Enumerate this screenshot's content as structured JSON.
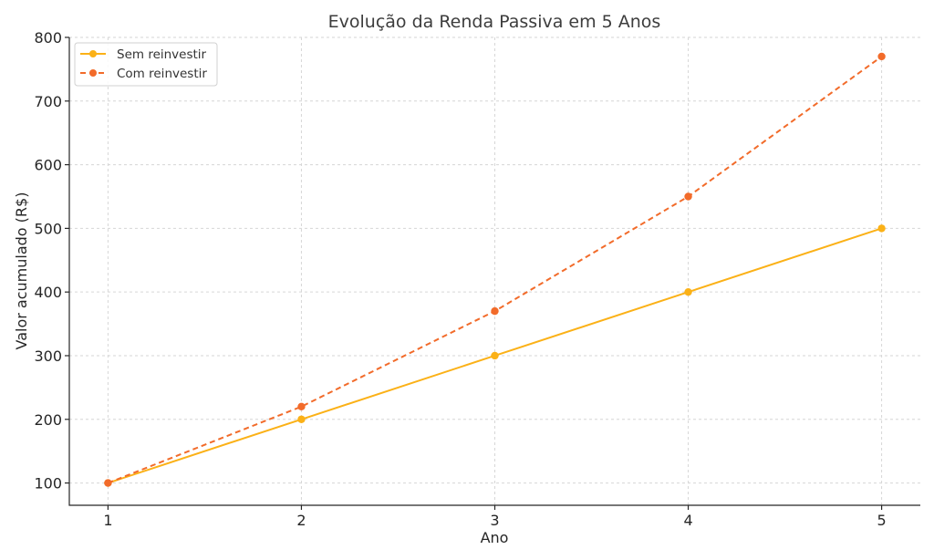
{
  "chart_data": {
    "type": "line",
    "title": "Evolução da Renda Passiva em 5 Anos",
    "xlabel": "Ano",
    "ylabel": "Valor acumulado (R$)",
    "x": [
      1,
      2,
      3,
      4,
      5
    ],
    "xlim": [
      0.8,
      5.2
    ],
    "ylim": [
      65,
      800
    ],
    "yticks": [
      100,
      200,
      300,
      400,
      500,
      600,
      700,
      800
    ],
    "grid": true,
    "legend_position": "top-left",
    "series": [
      {
        "name": "Sem reinvestir",
        "values": [
          100,
          200,
          300,
          400,
          500
        ],
        "color": "#fbb117",
        "line_style": "solid",
        "marker": "circle"
      },
      {
        "name": "Com reinvestir",
        "values": [
          100,
          220,
          370,
          550,
          770
        ],
        "color": "#f26b2a",
        "line_style": "dashed",
        "marker": "circle"
      }
    ]
  }
}
